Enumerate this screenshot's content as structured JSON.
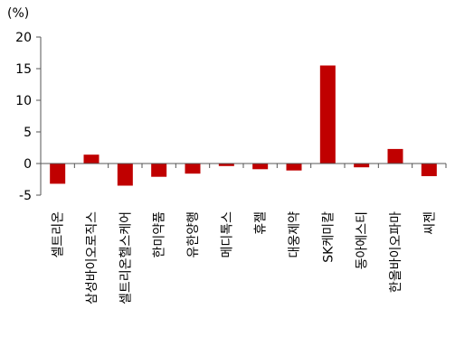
{
  "chart_data": {
    "type": "bar",
    "unit_label": "(%)",
    "categories": [
      "셀트리온",
      "삼성바이오로직스",
      "셀트리온헬스케어",
      "한미약품",
      "유한양행",
      "메디톡스",
      "휴젤",
      "대웅제약",
      "SK케미칼",
      "동아에스티",
      "한올바이오파마",
      "씨젠"
    ],
    "values": [
      -3.2,
      1.4,
      -3.5,
      -2.1,
      -1.6,
      -0.4,
      -0.9,
      -1.1,
      15.5,
      -0.6,
      2.3,
      -2.0
    ],
    "ylim": [
      -5,
      20
    ],
    "yticks": [
      -5,
      0,
      5,
      10,
      15,
      20
    ],
    "bar_color": "#c00000",
    "grid": false,
    "legend": "none"
  }
}
